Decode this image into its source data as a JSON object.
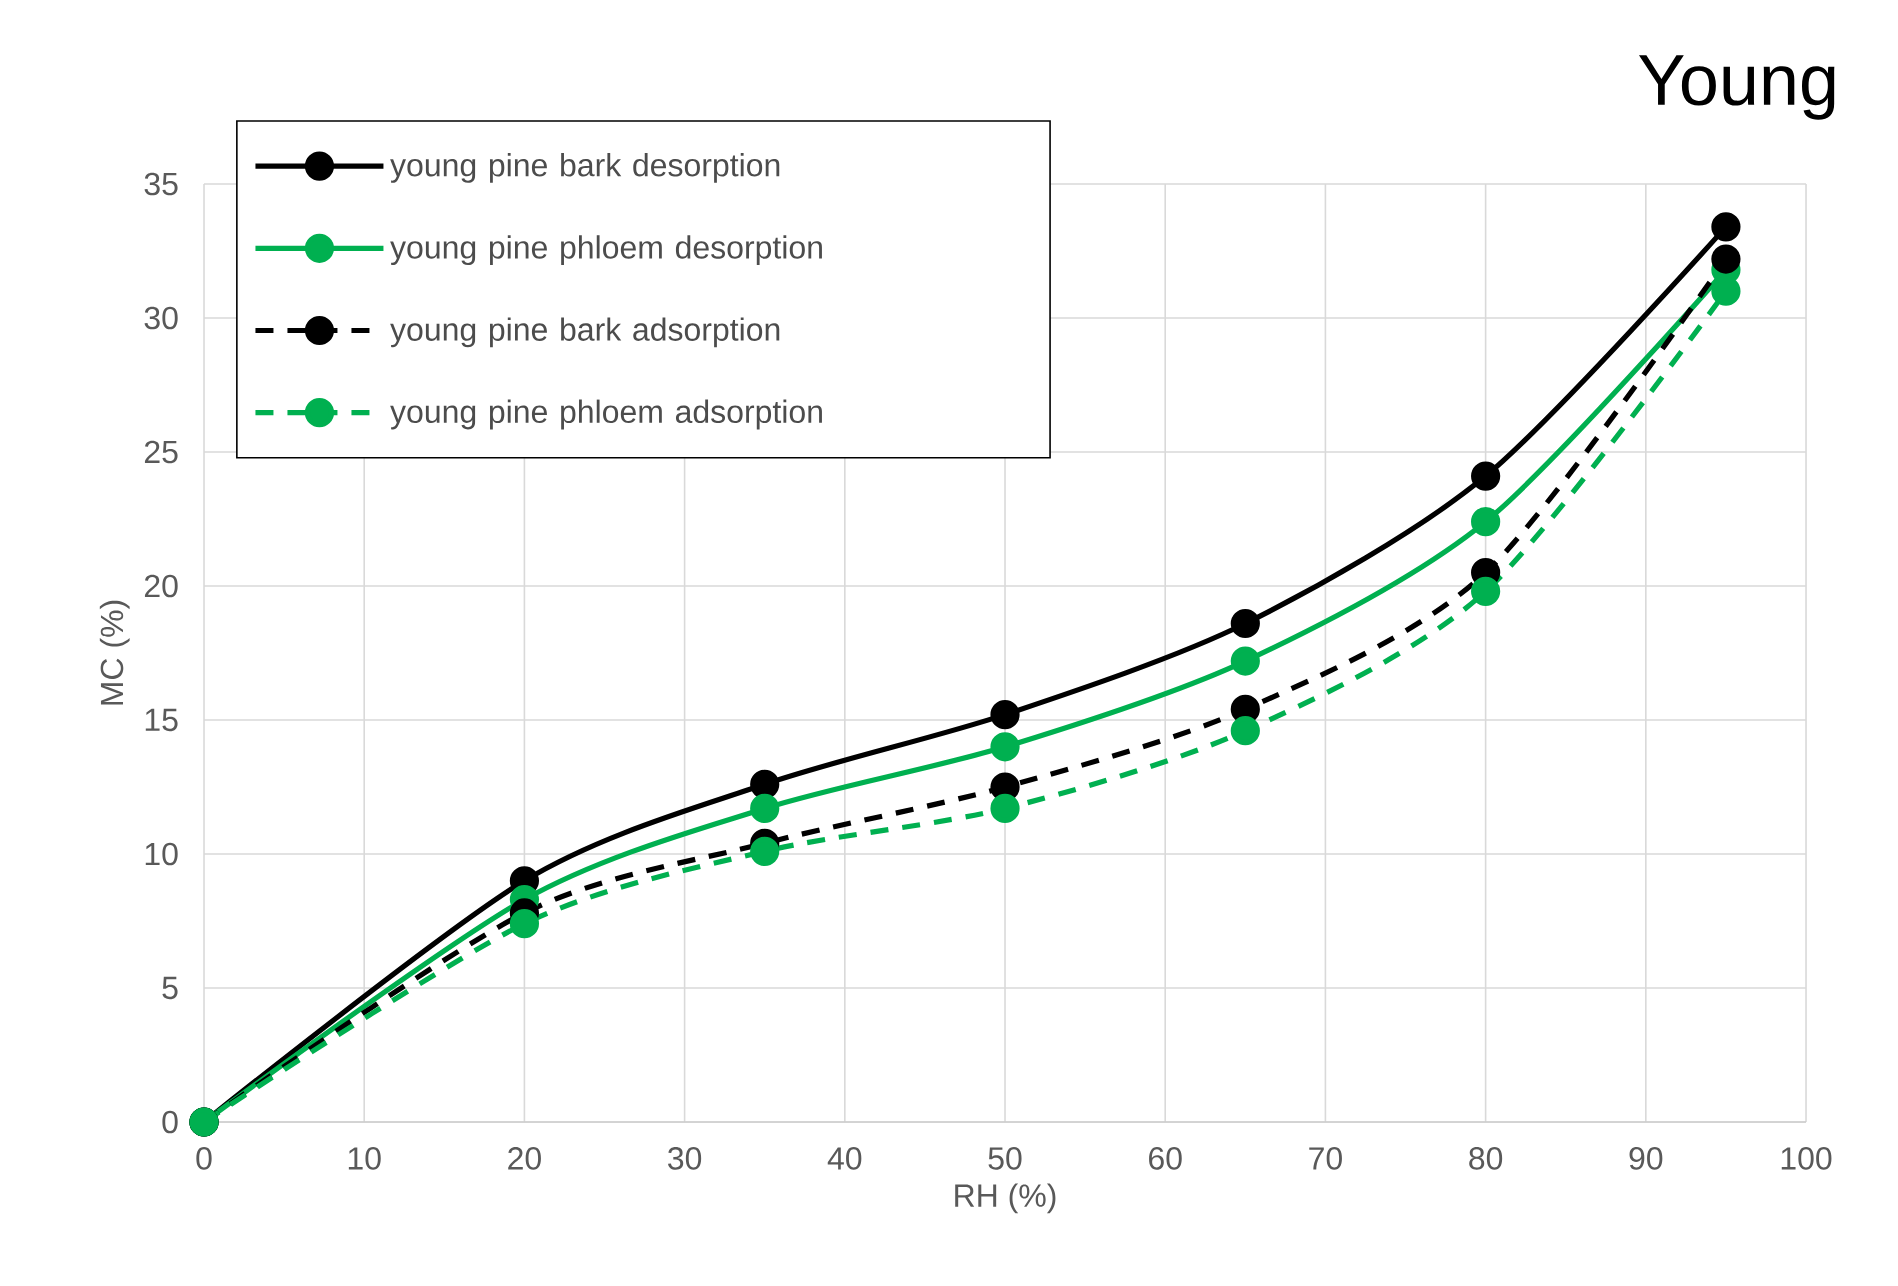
{
  "chart_data": {
    "type": "line",
    "title": "Young",
    "xlabel": "RH (%)",
    "ylabel": "MC (%)",
    "x": [
      0,
      20,
      35,
      50,
      65,
      80,
      95
    ],
    "series": [
      {
        "name": "young pine bark desorption",
        "color": "#000000",
        "line_style": "solid",
        "values": [
          0,
          9.0,
          12.6,
          15.2,
          18.6,
          24.1,
          33.4
        ]
      },
      {
        "name": "young pine phloem desorption",
        "color": "#00b050",
        "line_style": "solid",
        "values": [
          0,
          8.3,
          11.7,
          14.0,
          17.2,
          22.4,
          31.8
        ]
      },
      {
        "name": "young pine bark adsorption",
        "color": "#000000",
        "line_style": "dashed",
        "values": [
          0,
          7.8,
          10.4,
          12.5,
          15.4,
          20.5,
          32.2
        ]
      },
      {
        "name": "young pine phloem adsorption",
        "color": "#00b050",
        "line_style": "dashed",
        "values": [
          0,
          7.4,
          10.1,
          11.7,
          14.6,
          19.8,
          31.0
        ]
      }
    ],
    "xlim": [
      0,
      100
    ],
    "ylim": [
      0,
      35
    ],
    "xticks": [
      0,
      10,
      20,
      30,
      40,
      50,
      60,
      70,
      80,
      90,
      100
    ],
    "yticks": [
      0,
      5,
      10,
      15,
      20,
      25,
      30,
      35
    ],
    "grid": true,
    "legend": "top left",
    "marker": "circle"
  }
}
